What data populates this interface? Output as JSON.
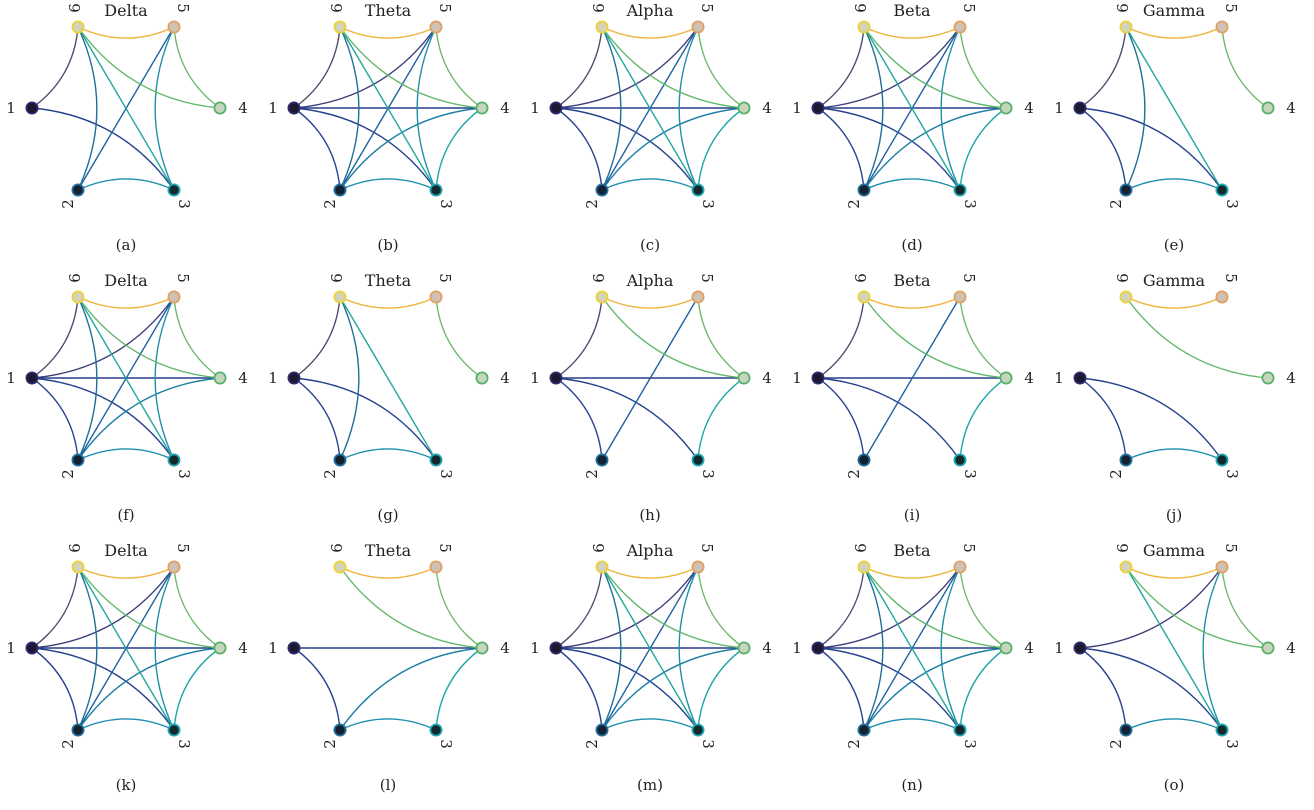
{
  "nodes": [
    {
      "id": 1,
      "label": "1",
      "fill": "#1b1830",
      "stroke": "#2d2b6b"
    },
    {
      "id": 2,
      "label": "2",
      "fill": "#152030",
      "stroke": "#1f6e9c"
    },
    {
      "id": 3,
      "label": "3",
      "fill": "#132a2c",
      "stroke": "#21a6b4"
    },
    {
      "id": 4,
      "label": "4",
      "fill": "#c6d6bd",
      "stroke": "#58b06a"
    },
    {
      "id": 5,
      "label": "5",
      "fill": "#cec2b6",
      "stroke": "#e2a060"
    },
    {
      "id": 6,
      "label": "6",
      "fill": "#d3d3bb",
      "stroke": "#ecd234"
    }
  ],
  "edge_colors": {
    "1-2": "#2a4291",
    "1-3": "#24418d",
    "1-4": "#263e8a",
    "1-5": "#3c3f7a",
    "1-6": "#4b4a6a",
    "2-3": "#1f8fb0",
    "2-4": "#1e7fa6",
    "2-5": "#2161a0",
    "2-6": "#1f6f98",
    "3-4": "#20a6a8",
    "3-5": "#1f90a8",
    "3-6": "#22a89c",
    "4-5": "#6cb868",
    "4-6": "#62b86c",
    "5-6": "#f0b43c"
  },
  "panels": [
    {
      "id": "a",
      "title": "Delta",
      "caption": "(a)",
      "edges": [
        "5-6",
        "1-6",
        "1-3",
        "2-3",
        "2-5",
        "3-6",
        "2-6",
        "3-5",
        "4-6",
        "4-5"
      ]
    },
    {
      "id": "b",
      "title": "Theta",
      "caption": "(b)",
      "edges": [
        "5-6",
        "1-2",
        "1-3",
        "1-4",
        "1-5",
        "1-6",
        "2-3",
        "2-4",
        "2-5",
        "2-6",
        "3-4",
        "3-5",
        "3-6",
        "4-5",
        "4-6"
      ]
    },
    {
      "id": "c",
      "title": "Alpha",
      "caption": "(c)",
      "edges": [
        "5-6",
        "1-2",
        "1-3",
        "1-4",
        "1-5",
        "1-6",
        "2-3",
        "2-4",
        "2-5",
        "2-6",
        "3-4",
        "3-5",
        "3-6",
        "4-5",
        "4-6"
      ]
    },
    {
      "id": "d",
      "title": "Beta",
      "caption": "(d)",
      "edges": [
        "5-6",
        "1-2",
        "1-3",
        "1-4",
        "1-5",
        "1-6",
        "2-3",
        "2-4",
        "2-5",
        "2-6",
        "3-4",
        "3-5",
        "3-6",
        "4-5",
        "4-6"
      ]
    },
    {
      "id": "e",
      "title": "Gamma",
      "caption": "(e)",
      "edges": [
        "5-6",
        "1-2",
        "1-3",
        "1-6",
        "2-3",
        "2-6",
        "3-6",
        "4-5"
      ]
    },
    {
      "id": "f",
      "title": "Delta",
      "caption": "(f)",
      "edges": [
        "5-6",
        "1-2",
        "1-3",
        "1-4",
        "1-5",
        "1-6",
        "2-3",
        "2-4",
        "2-5",
        "2-6",
        "3-5",
        "3-6",
        "4-5",
        "4-6"
      ]
    },
    {
      "id": "g",
      "title": "Theta",
      "caption": "(g)",
      "edges": [
        "5-6",
        "1-2",
        "1-3",
        "1-6",
        "2-3",
        "2-6",
        "3-6",
        "4-5"
      ]
    },
    {
      "id": "h",
      "title": "Alpha",
      "caption": "(h)",
      "edges": [
        "5-6",
        "1-2",
        "1-3",
        "1-4",
        "1-6",
        "2-5",
        "3-4",
        "4-5",
        "4-6"
      ]
    },
    {
      "id": "i",
      "title": "Beta",
      "caption": "(i)",
      "edges": [
        "5-6",
        "1-2",
        "1-3",
        "1-4",
        "1-6",
        "2-5",
        "3-4",
        "4-5",
        "4-6"
      ]
    },
    {
      "id": "j",
      "title": "Gamma",
      "caption": "(j)",
      "edges": [
        "5-6",
        "4-6",
        "1-2",
        "1-3",
        "2-3"
      ]
    },
    {
      "id": "k",
      "title": "Delta",
      "caption": "(k)",
      "edges": [
        "5-6",
        "1-2",
        "1-3",
        "1-4",
        "1-5",
        "1-6",
        "2-3",
        "2-4",
        "2-5",
        "2-6",
        "3-4",
        "3-5",
        "3-6",
        "4-5",
        "4-6"
      ]
    },
    {
      "id": "l",
      "title": "Theta",
      "caption": "(l)",
      "edges": [
        "5-6",
        "1-2",
        "1-4",
        "2-3",
        "2-4",
        "3-4",
        "4-5",
        "4-6"
      ]
    },
    {
      "id": "m",
      "title": "Alpha",
      "caption": "(m)",
      "edges": [
        "5-6",
        "1-2",
        "1-3",
        "1-4",
        "1-5",
        "1-6",
        "2-3",
        "2-4",
        "2-5",
        "2-6",
        "3-4",
        "3-5",
        "3-6",
        "4-5",
        "4-6"
      ]
    },
    {
      "id": "n",
      "title": "Beta",
      "caption": "(n)",
      "edges": [
        "5-6",
        "1-2",
        "1-3",
        "1-4",
        "1-5",
        "1-6",
        "2-3",
        "2-4",
        "2-5",
        "2-6",
        "3-4",
        "3-5",
        "3-6",
        "4-5",
        "4-6"
      ]
    },
    {
      "id": "o",
      "title": "Gamma",
      "caption": "(o)",
      "edges": [
        "5-6",
        "1-2",
        "1-3",
        "1-5",
        "2-3",
        "3-5",
        "3-6",
        "4-5",
        "4-6"
      ]
    }
  ]
}
